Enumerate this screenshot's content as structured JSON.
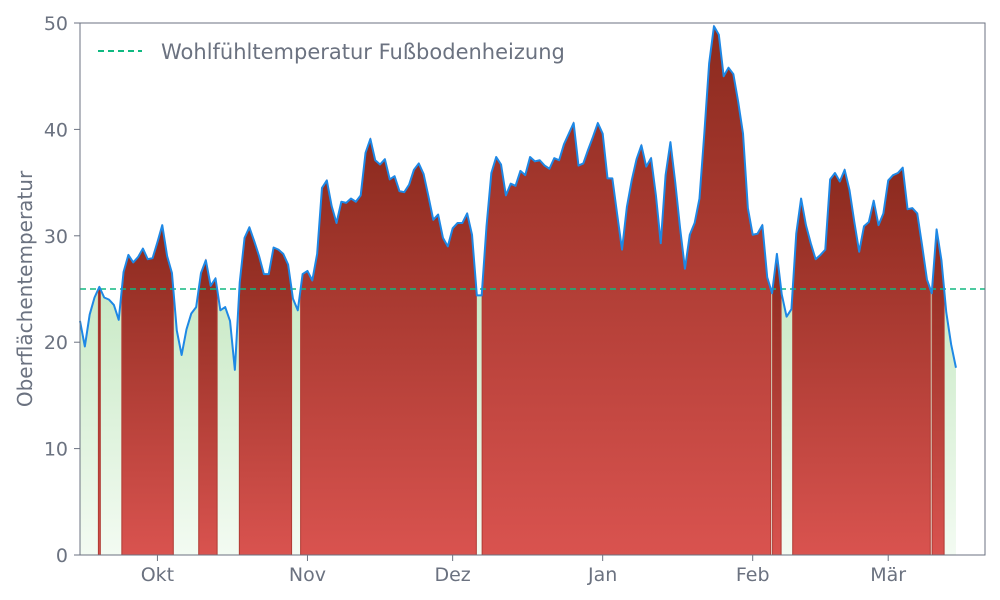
{
  "chart_data": {
    "type": "area",
    "title": "",
    "xlabel": "",
    "ylabel": "Oberflächentemperatur",
    "ylim": [
      0,
      50
    ],
    "yticks": [
      0,
      10,
      20,
      30,
      40,
      50
    ],
    "x_start": "2024-09-15",
    "x_end": "2025-03-21",
    "xticks": [
      {
        "date": "2024-10-01",
        "label": "Okt"
      },
      {
        "date": "2024-11-01",
        "label": "Nov"
      },
      {
        "date": "2024-12-01",
        "label": "Dez"
      },
      {
        "date": "2025-01-01",
        "label": "Jan"
      },
      {
        "date": "2025-02-01",
        "label": "Feb"
      },
      {
        "date": "2025-03-01",
        "label": "Mär"
      }
    ],
    "threshold": {
      "value": 25,
      "label": "Wohlfühltemperatur Fußbodenheizung"
    },
    "grid": false,
    "legend_position": "top-left",
    "colors": {
      "line": "#1e88e5",
      "threshold": "#10b981",
      "above_fill_top": "#8b2a1e",
      "above_fill_bottom": "#d9534f",
      "below_fill_top": "#9fd89a",
      "below_fill_bottom": "#f3fbf2",
      "axis": "#6b7280"
    },
    "series": [
      {
        "start_date": "2024-09-15",
        "step_days": 1,
        "values": [
          22.0,
          19.6,
          22.6,
          24.2,
          25.2,
          24.2,
          24.0,
          23.5,
          22.1,
          26.6,
          28.2,
          27.5,
          28.0,
          28.8,
          27.8,
          27.9,
          29.4,
          31.0,
          28.1,
          26.5,
          21.1,
          18.8,
          21.2,
          22.7,
          23.3,
          26.5,
          27.7,
          25.3,
          26.0,
          23.0,
          23.3,
          22.0,
          17.4,
          25.6,
          29.8,
          30.8,
          29.5,
          28.1,
          26.4,
          26.4,
          28.9,
          28.7,
          28.3,
          27.3,
          24.1,
          23.0,
          26.4,
          26.7,
          25.8,
          28.3,
          34.5,
          35.2,
          32.8,
          31.2,
          33.2,
          33.1,
          33.5,
          33.2,
          33.8,
          37.8,
          39.1,
          37.1,
          36.7,
          37.2,
          35.3,
          35.6,
          34.2,
          34.1,
          34.8,
          36.2,
          36.8,
          35.8,
          33.7,
          31.5,
          32.0,
          29.8,
          29.0,
          30.7,
          31.2,
          31.2,
          32.1,
          30.1,
          24.4,
          24.4,
          30.9,
          35.9,
          37.4,
          36.7,
          33.8,
          34.9,
          34.7,
          36.1,
          35.7,
          37.4,
          37.0,
          37.1,
          36.6,
          36.3,
          37.3,
          37.1,
          38.6,
          39.6,
          40.6,
          36.6,
          36.8,
          38.1,
          39.3,
          40.6,
          39.6,
          35.4,
          35.4,
          32.0,
          28.7,
          32.7,
          35.2,
          37.2,
          38.5,
          36.5,
          37.3,
          33.8,
          29.3,
          35.7,
          38.8,
          35.0,
          30.7,
          26.9,
          30.1,
          31.2,
          33.5,
          39.6,
          46.2,
          49.7,
          48.9,
          45.0,
          45.8,
          45.2,
          42.6,
          39.6,
          32.6,
          30.1,
          30.2,
          31.0,
          26.1,
          24.6,
          28.3,
          24.5,
          22.4,
          23.1,
          30.2,
          33.5,
          31.0,
          29.3,
          27.8,
          28.2,
          28.7,
          35.3,
          35.9,
          35.1,
          36.2,
          34.3,
          31.3,
          28.5,
          30.9,
          31.3,
          33.3,
          31.0,
          32.1,
          35.2,
          35.7,
          35.9,
          36.4,
          32.5,
          32.6,
          32.1,
          29.1,
          25.9,
          24.6,
          30.6,
          27.7,
          22.8,
          19.8,
          17.6
        ]
      }
    ]
  }
}
